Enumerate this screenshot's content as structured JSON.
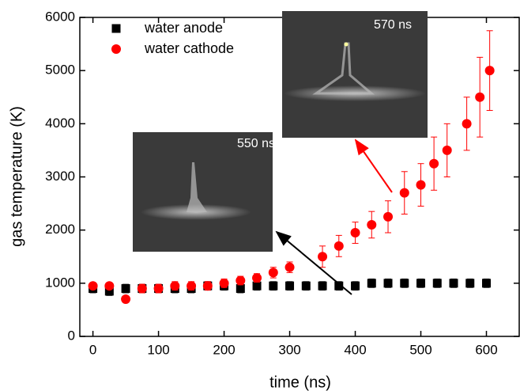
{
  "chart_data": {
    "type": "scatter",
    "xlabel": "time (ns)",
    "ylabel": "gas temperature (K)",
    "xlim": [
      -20,
      650
    ],
    "ylim": [
      0,
      6000
    ],
    "xticks": [
      0,
      100,
      200,
      300,
      400,
      500,
      600
    ],
    "yticks": [
      0,
      1000,
      2000,
      3000,
      4000,
      5000,
      6000
    ],
    "legend": "upper left",
    "annotations": [
      "550 ns",
      "570 ns"
    ],
    "series": [
      {
        "name": "water anode",
        "color": "#000000",
        "marker": "square",
        "x": [
          0,
          25,
          50,
          75,
          100,
          125,
          150,
          175,
          200,
          225,
          250,
          275,
          300,
          325,
          350,
          375,
          400,
          425,
          450,
          475,
          500,
          525,
          550,
          575,
          600
        ],
        "values": [
          900,
          850,
          900,
          900,
          900,
          900,
          900,
          950,
          950,
          900,
          950,
          950,
          950,
          950,
          950,
          950,
          950,
          1000,
          1000,
          1000,
          1000,
          1000,
          1000,
          1000,
          1000
        ],
        "errors": [
          80,
          80,
          80,
          80,
          80,
          80,
          80,
          80,
          80,
          80,
          80,
          80,
          80,
          80,
          80,
          80,
          80,
          80,
          80,
          80,
          80,
          80,
          80,
          80,
          80
        ]
      },
      {
        "name": "water cathode",
        "color": "#ff0000",
        "marker": "circle",
        "x": [
          0,
          25,
          50,
          75,
          100,
          125,
          150,
          175,
          200,
          225,
          250,
          275,
          300,
          350,
          375,
          400,
          425,
          450,
          475,
          500,
          520,
          540,
          570,
          590,
          605
        ],
        "values": [
          950,
          950,
          700,
          900,
          900,
          950,
          950,
          950,
          1000,
          1050,
          1100,
          1200,
          1300,
          1500,
          1700,
          1950,
          2100,
          2250,
          2700,
          2850,
          3250,
          3500,
          4000,
          4500,
          5000
        ],
        "errors": [
          50,
          50,
          50,
          80,
          80,
          80,
          80,
          80,
          80,
          80,
          80,
          100,
          100,
          200,
          200,
          200,
          250,
          300,
          400,
          400,
          500,
          500,
          500,
          750,
          750
        ]
      }
    ]
  }
}
